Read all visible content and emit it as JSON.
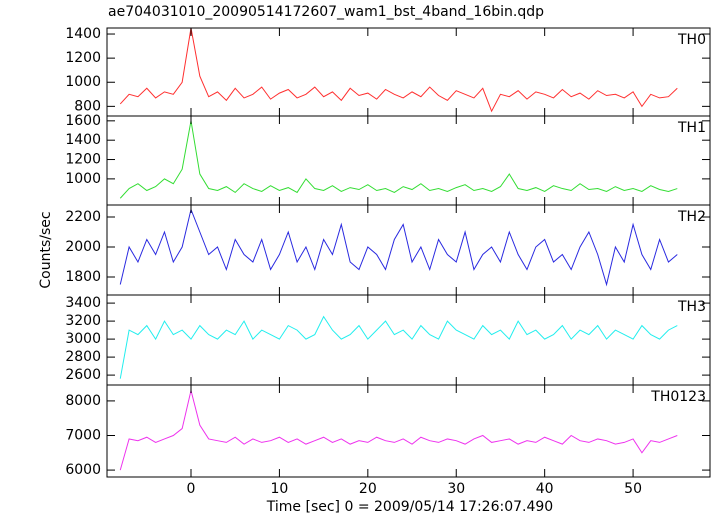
{
  "title": "ae704031010_20090514172607_wam1_bst_4band_16bin.qdp",
  "y_label": "Counts/sec",
  "x_label": "Time [sec] 0 = 2009/05/14 17:26:07.490",
  "chart_data": [
    {
      "type": "line",
      "label": "TH0",
      "color": "#ff3030",
      "x": [
        -8,
        -7,
        -6,
        -5,
        -4,
        -3,
        -2,
        -1,
        0,
        1,
        2,
        3,
        4,
        5,
        6,
        7,
        8,
        9,
        10,
        11,
        12,
        13,
        14,
        15,
        16,
        17,
        18,
        19,
        20,
        21,
        22,
        23,
        24,
        25,
        26,
        27,
        28,
        29,
        30,
        31,
        32,
        33,
        34,
        35,
        36,
        37,
        38,
        39,
        40,
        41,
        42,
        43,
        44,
        45,
        46,
        47,
        48,
        49,
        50,
        51,
        52,
        53,
        54,
        55
      ],
      "values": [
        820,
        900,
        880,
        950,
        870,
        920,
        900,
        1000,
        1450,
        1050,
        880,
        920,
        850,
        950,
        870,
        900,
        960,
        860,
        910,
        940,
        870,
        900,
        960,
        880,
        920,
        850,
        950,
        890,
        910,
        860,
        940,
        900,
        870,
        920,
        880,
        960,
        890,
        850,
        930,
        900,
        870,
        950,
        760,
        900,
        880,
        930,
        860,
        920,
        900,
        870,
        940,
        880,
        910,
        860,
        930,
        890,
        900,
        870,
        920,
        800,
        900,
        870,
        880,
        950
      ],
      "xlim": [
        -9.5,
        58.7
      ],
      "xticks": [
        0,
        10,
        20,
        30,
        40,
        50
      ],
      "ylim": [
        720,
        1450
      ],
      "yticks": [
        800,
        1000,
        1200,
        1400
      ]
    },
    {
      "type": "line",
      "label": "TH1",
      "color": "#33dd33",
      "x": [
        -8,
        -7,
        -6,
        -5,
        -4,
        -3,
        -2,
        -1,
        0,
        1,
        2,
        3,
        4,
        5,
        6,
        7,
        8,
        9,
        10,
        11,
        12,
        13,
        14,
        15,
        16,
        17,
        18,
        19,
        20,
        21,
        22,
        23,
        24,
        25,
        26,
        27,
        28,
        29,
        30,
        31,
        32,
        33,
        34,
        35,
        36,
        37,
        38,
        39,
        40,
        41,
        42,
        43,
        44,
        45,
        46,
        47,
        48,
        49,
        50,
        51,
        52,
        53,
        54,
        55
      ],
      "values": [
        800,
        900,
        950,
        880,
        920,
        1000,
        950,
        1100,
        1600,
        1050,
        900,
        880,
        920,
        860,
        950,
        900,
        870,
        930,
        880,
        910,
        860,
        1000,
        900,
        880,
        930,
        870,
        910,
        890,
        940,
        880,
        900,
        860,
        920,
        890,
        950,
        880,
        900,
        870,
        910,
        940,
        880,
        900,
        870,
        920,
        1050,
        900,
        880,
        910,
        870,
        930,
        900,
        880,
        950,
        890,
        900,
        870,
        920,
        880,
        900,
        870,
        930,
        890,
        870,
        900
      ],
      "xlim": [
        -9.5,
        58.7
      ],
      "xticks": [
        0,
        10,
        20,
        30,
        40,
        50
      ],
      "ylim": [
        730,
        1650
      ],
      "yticks": [
        1000,
        1200,
        1400,
        1600
      ]
    },
    {
      "type": "line",
      "label": "TH2",
      "color": "#2a2ae0",
      "x": [
        -8,
        -7,
        -6,
        -5,
        -4,
        -3,
        -2,
        -1,
        0,
        1,
        2,
        3,
        4,
        5,
        6,
        7,
        8,
        9,
        10,
        11,
        12,
        13,
        14,
        15,
        16,
        17,
        18,
        19,
        20,
        21,
        22,
        23,
        24,
        25,
        26,
        27,
        28,
        29,
        30,
        31,
        32,
        33,
        34,
        35,
        36,
        37,
        38,
        39,
        40,
        41,
        42,
        43,
        44,
        45,
        46,
        47,
        48,
        49,
        50,
        51,
        52,
        53,
        54,
        55
      ],
      "values": [
        1750,
        2000,
        1900,
        2050,
        1950,
        2100,
        1900,
        2000,
        2250,
        2100,
        1950,
        2000,
        1850,
        2050,
        1950,
        1900,
        2050,
        1850,
        1950,
        2100,
        1900,
        2000,
        1850,
        2050,
        1950,
        2150,
        1900,
        1850,
        2000,
        1950,
        1850,
        2050,
        2150,
        1900,
        2000,
        1850,
        2050,
        1950,
        1900,
        2100,
        1850,
        1950,
        2000,
        1900,
        2100,
        1950,
        1850,
        2000,
        2050,
        1900,
        1950,
        1850,
        2000,
        2100,
        1950,
        1750,
        2000,
        1900,
        2150,
        1950,
        1850,
        2050,
        1900,
        1950
      ],
      "xlim": [
        -9.5,
        58.7
      ],
      "xticks": [
        0,
        10,
        20,
        30,
        40,
        50
      ],
      "ylim": [
        1680,
        2280
      ],
      "yticks": [
        1800,
        2000,
        2200
      ]
    },
    {
      "type": "line",
      "label": "TH3",
      "color": "#22eeee",
      "x": [
        -8,
        -7,
        -6,
        -5,
        -4,
        -3,
        -2,
        -1,
        0,
        1,
        2,
        3,
        4,
        5,
        6,
        7,
        8,
        9,
        10,
        11,
        12,
        13,
        14,
        15,
        16,
        17,
        18,
        19,
        20,
        21,
        22,
        23,
        24,
        25,
        26,
        27,
        28,
        29,
        30,
        31,
        32,
        33,
        34,
        35,
        36,
        37,
        38,
        39,
        40,
        41,
        42,
        43,
        44,
        45,
        46,
        47,
        48,
        49,
        50,
        51,
        52,
        53,
        54,
        55
      ],
      "values": [
        2560,
        3100,
        3050,
        3150,
        3000,
        3200,
        3050,
        3100,
        3000,
        3150,
        3050,
        3000,
        3100,
        3050,
        3200,
        3000,
        3100,
        3050,
        3000,
        3150,
        3100,
        3000,
        3050,
        3250,
        3100,
        3000,
        3050,
        3150,
        3000,
        3100,
        3200,
        3050,
        3100,
        3000,
        3150,
        3050,
        3000,
        3200,
        3100,
        3050,
        3000,
        3150,
        3050,
        3100,
        3000,
        3200,
        3050,
        3100,
        3000,
        3050,
        3150,
        3000,
        3100,
        3050,
        3150,
        3000,
        3100,
        3050,
        3000,
        3150,
        3050,
        3000,
        3100,
        3150
      ],
      "xlim": [
        -9.5,
        58.7
      ],
      "xticks": [
        0,
        10,
        20,
        30,
        40,
        50
      ],
      "ylim": [
        2490,
        3490
      ],
      "yticks": [
        2600,
        2800,
        3000,
        3200,
        3400
      ]
    },
    {
      "type": "line",
      "label": "TH0123",
      "color": "#ee33ee",
      "x": [
        -8,
        -7,
        -6,
        -5,
        -4,
        -3,
        -2,
        -1,
        0,
        1,
        2,
        3,
        4,
        5,
        6,
        7,
        8,
        9,
        10,
        11,
        12,
        13,
        14,
        15,
        16,
        17,
        18,
        19,
        20,
        21,
        22,
        23,
        24,
        25,
        26,
        27,
        28,
        29,
        30,
        31,
        32,
        33,
        34,
        35,
        36,
        37,
        38,
        39,
        40,
        41,
        42,
        43,
        44,
        45,
        46,
        47,
        48,
        49,
        50,
        51,
        52,
        53,
        54,
        55
      ],
      "values": [
        6000,
        6900,
        6850,
        6950,
        6800,
        6900,
        7000,
        7200,
        8300,
        7300,
        6900,
        6850,
        6800,
        6950,
        6750,
        6900,
        6800,
        6850,
        6950,
        6800,
        6900,
        6750,
        6850,
        6950,
        6800,
        6900,
        6750,
        6850,
        6800,
        6950,
        6850,
        6800,
        6900,
        6750,
        6950,
        6850,
        6800,
        6900,
        6850,
        6750,
        6900,
        7000,
        6800,
        6850,
        6900,
        6750,
        6850,
        6800,
        6950,
        6850,
        6750,
        7000,
        6850,
        6800,
        6900,
        6850,
        6750,
        6800,
        6900,
        6500,
        6850,
        6800,
        6900,
        7000
      ],
      "xlim": [
        -9.5,
        58.7
      ],
      "xticks": [
        0,
        10,
        20,
        30,
        40,
        50
      ],
      "ylim": [
        5800,
        8460
      ],
      "yticks": [
        6000,
        7000,
        8000
      ]
    }
  ]
}
